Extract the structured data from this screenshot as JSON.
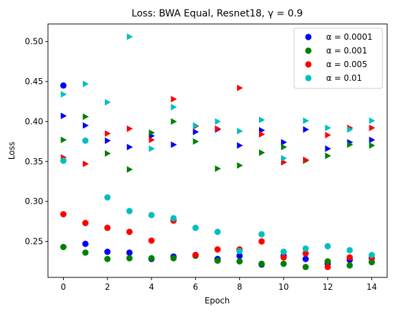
{
  "chart_data": {
    "type": "scatter",
    "title": "Loss: BWA Equal, Resnet18, γ = 0.9",
    "xlabel": "Epoch",
    "ylabel": "Loss",
    "xlim": [
      -0.7,
      14.7
    ],
    "ylim": [
      0.205,
      0.522
    ],
    "xticks": [
      0,
      2,
      4,
      6,
      8,
      10,
      12,
      14
    ],
    "yticks": [
      0.25,
      0.3,
      0.35,
      0.4,
      0.45,
      0.5
    ],
    "grid": false,
    "legend_position": "top-right",
    "marker_legend": "circle",
    "series": [
      {
        "name": "α = 0.0001",
        "color": "#0000ff",
        "circles": [
          [
            0,
            0.445
          ],
          [
            1,
            0.247
          ],
          [
            2,
            0.237
          ],
          [
            3,
            0.236
          ],
          [
            4,
            0.228
          ],
          [
            5,
            0.231
          ],
          [
            6,
            0.233
          ],
          [
            7,
            0.228
          ],
          [
            8,
            0.232
          ],
          [
            9,
            0.221
          ],
          [
            10,
            0.232
          ],
          [
            11,
            0.228
          ],
          [
            12,
            0.222
          ],
          [
            13,
            0.227
          ],
          [
            14,
            0.229
          ]
        ],
        "triangles": [
          [
            0,
            0.407
          ],
          [
            1,
            0.395
          ],
          [
            2,
            0.376
          ],
          [
            3,
            0.368
          ],
          [
            4,
            0.382
          ],
          [
            5,
            0.371
          ],
          [
            6,
            0.387
          ],
          [
            7,
            0.39
          ],
          [
            8,
            0.37
          ],
          [
            9,
            0.389
          ],
          [
            10,
            0.374
          ],
          [
            11,
            0.39
          ],
          [
            12,
            0.366
          ],
          [
            13,
            0.374
          ],
          [
            14,
            0.377
          ]
        ]
      },
      {
        "name": "α = 0.001",
        "color": "#008000",
        "circles": [
          [
            0,
            0.243
          ],
          [
            1,
            0.236
          ],
          [
            2,
            0.228
          ],
          [
            3,
            0.229
          ],
          [
            4,
            0.229
          ],
          [
            5,
            0.229
          ],
          [
            6,
            0.232
          ],
          [
            7,
            0.226
          ],
          [
            8,
            0.225
          ],
          [
            9,
            0.222
          ],
          [
            10,
            0.222
          ],
          [
            11,
            0.218
          ],
          [
            12,
            0.225
          ],
          [
            13,
            0.22
          ],
          [
            14,
            0.224
          ]
        ],
        "triangles": [
          [
            0,
            0.377
          ],
          [
            1,
            0.406
          ],
          [
            2,
            0.36
          ],
          [
            3,
            0.34
          ],
          [
            4,
            0.386
          ],
          [
            5,
            0.4
          ],
          [
            6,
            0.375
          ],
          [
            7,
            0.341
          ],
          [
            8,
            0.345
          ],
          [
            9,
            0.361
          ],
          [
            10,
            0.368
          ],
          [
            11,
            0.351
          ],
          [
            12,
            0.357
          ],
          [
            13,
            0.371
          ],
          [
            14,
            0.37
          ]
        ]
      },
      {
        "name": "α = 0.005",
        "color": "#ff0000",
        "circles": [
          [
            0,
            0.284
          ],
          [
            1,
            0.273
          ],
          [
            2,
            0.267
          ],
          [
            3,
            0.262
          ],
          [
            4,
            0.251
          ],
          [
            5,
            0.276
          ],
          [
            6,
            0.233
          ],
          [
            7,
            0.24
          ],
          [
            8,
            0.24
          ],
          [
            9,
            0.25
          ],
          [
            10,
            0.23
          ],
          [
            11,
            0.235
          ],
          [
            12,
            0.218
          ],
          [
            13,
            0.23
          ],
          [
            14,
            0.23
          ]
        ],
        "triangles": [
          [
            0,
            0.355
          ],
          [
            1,
            0.347
          ],
          [
            2,
            0.385
          ],
          [
            3,
            0.391
          ],
          [
            4,
            0.377
          ],
          [
            5,
            0.428
          ],
          [
            6,
            0.394
          ],
          [
            7,
            0.391
          ],
          [
            8,
            0.442
          ],
          [
            9,
            0.384
          ],
          [
            10,
            0.349
          ],
          [
            11,
            0.352
          ],
          [
            12,
            0.383
          ],
          [
            13,
            0.392
          ],
          [
            14,
            0.392
          ]
        ]
      },
      {
        "name": "α = 0.01",
        "color": "#00bfbf",
        "circles": [
          [
            0,
            0.351
          ],
          [
            1,
            0.376
          ],
          [
            2,
            0.305
          ],
          [
            3,
            0.288
          ],
          [
            4,
            0.283
          ],
          [
            5,
            0.279
          ],
          [
            6,
            0.267
          ],
          [
            7,
            0.262
          ],
          [
            8,
            0.238
          ],
          [
            9,
            0.259
          ],
          [
            10,
            0.237
          ],
          [
            11,
            0.241
          ],
          [
            12,
            0.244
          ],
          [
            13,
            0.239
          ],
          [
            14,
            0.233
          ]
        ],
        "triangles": [
          [
            0,
            0.434
          ],
          [
            1,
            0.447
          ],
          [
            2,
            0.424
          ],
          [
            3,
            0.506
          ],
          [
            4,
            0.366
          ],
          [
            5,
            0.418
          ],
          [
            6,
            0.395
          ],
          [
            7,
            0.4
          ],
          [
            8,
            0.388
          ],
          [
            9,
            0.402
          ],
          [
            10,
            0.354
          ],
          [
            11,
            0.401
          ],
          [
            12,
            0.392
          ],
          [
            13,
            0.39
          ],
          [
            14,
            0.401
          ]
        ]
      }
    ]
  }
}
